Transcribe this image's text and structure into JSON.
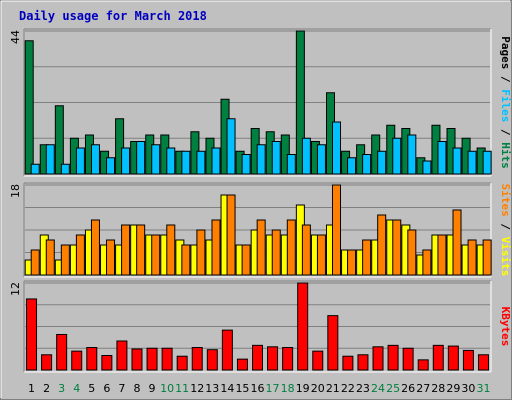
{
  "chart_data": {
    "type": "bar",
    "title": "Daily usage for March 2018",
    "categories": [
      "1",
      "2",
      "3",
      "4",
      "5",
      "6",
      "7",
      "8",
      "9",
      "10",
      "11",
      "12",
      "13",
      "14",
      "15",
      "16",
      "17",
      "18",
      "19",
      "20",
      "21",
      "22",
      "23",
      "24",
      "25",
      "26",
      "27",
      "28",
      "29",
      "30",
      "31"
    ],
    "weekend_categories": [
      "3",
      "4",
      "10",
      "11",
      "17",
      "18",
      "24",
      "25",
      "31"
    ],
    "legend_separator": " / ",
    "panels": [
      {
        "ylim": [
          0,
          44
        ],
        "tick_label": "44",
        "legend": [
          "Pages",
          "Files",
          "Hits"
        ],
        "series": [
          {
            "name": "Hits",
            "color": "#008040",
            "values": [
              41,
              9,
              21,
              11,
              12,
              7,
              17,
              10,
              12,
              12,
              7,
              13,
              11,
              23,
              7,
              14,
              13,
              12,
              46,
              10,
              25,
              7,
              9,
              12,
              15,
              14,
              5,
              15,
              14,
              11,
              8
            ]
          },
          {
            "name": "Files",
            "color": "#00c0ff",
            "values": [
              3,
              9,
              3,
              8,
              9,
              5,
              8,
              10,
              9,
              8,
              7,
              7,
              8,
              17,
              6,
              9,
              10,
              6,
              11,
              9,
              16,
              5,
              6,
              7,
              11,
              12,
              4,
              10,
              8,
              7,
              7
            ]
          }
        ]
      },
      {
        "ylim": [
          0,
          18
        ],
        "tick_label": "18",
        "legend": [
          "Sites",
          "Visits"
        ],
        "series": [
          {
            "name": "Visits",
            "color": "#ffff00",
            "values": [
              3,
              8,
              3,
              6,
              9,
              6,
              6,
              10,
              8,
              8,
              7,
              6,
              7,
              16,
              6,
              9,
              8,
              8,
              14,
              8,
              10,
              5,
              5,
              7,
              11,
              10,
              4,
              8,
              8,
              6,
              6
            ]
          },
          {
            "name": "Sites",
            "color": "#ff8000",
            "values": [
              5,
              7,
              6,
              8,
              11,
              7,
              10,
              10,
              8,
              10,
              6,
              9,
              11,
              16,
              6,
              11,
              9,
              11,
              10,
              8,
              18,
              5,
              7,
              12,
              11,
              9,
              5,
              8,
              13,
              7,
              7
            ]
          }
        ]
      },
      {
        "ylim": [
          0,
          12
        ],
        "tick_label": "12",
        "legend": [
          "KBytes"
        ],
        "series": [
          {
            "name": "KBytes",
            "color": "#ff0000",
            "values": [
              9.8,
              2.1,
              4.9,
              2.6,
              3.1,
              2.0,
              4.0,
              2.9,
              3.0,
              3.0,
              1.9,
              3.1,
              2.8,
              5.5,
              1.5,
              3.4,
              3.2,
              3.1,
              12.2,
              2.6,
              7.5,
              1.9,
              2.1,
              3.2,
              3.4,
              3.0,
              1.4,
              3.4,
              3.3,
              2.7,
              2.1
            ]
          }
        ]
      }
    ]
  }
}
